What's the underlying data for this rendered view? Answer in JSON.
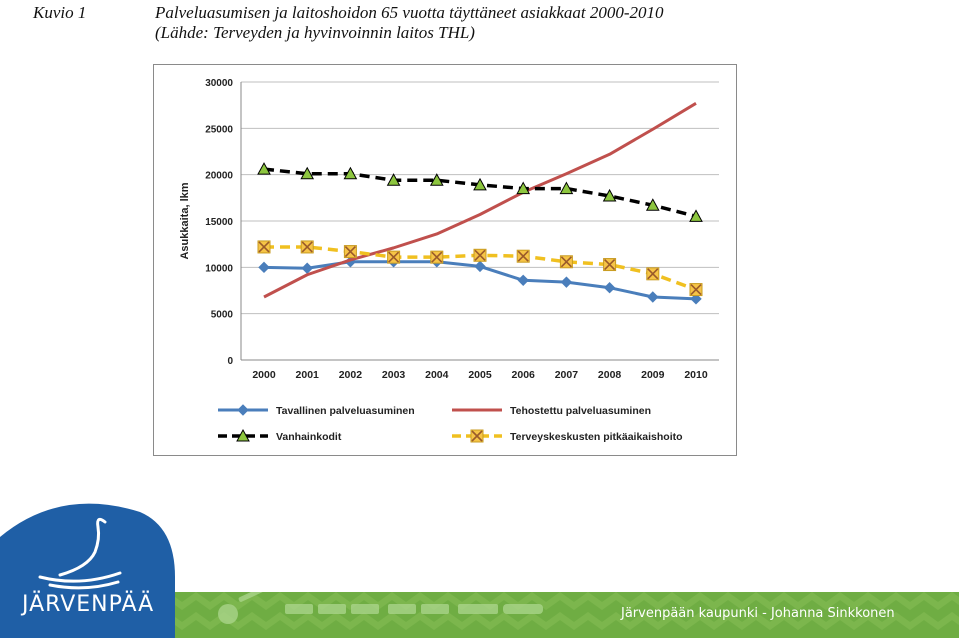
{
  "caption": {
    "label": "Kuvio 1",
    "title_line1": "Palveluasumisen ja laitoshoidon 65 vuotta täyttäneet asiakkaat 2000-2010",
    "title_line2": "(Lähde: Terveyden ja hyvinvoinnin laitos THL)"
  },
  "chart_data": {
    "type": "line",
    "ylabel": "Asukkaita, lkm",
    "ylim": [
      0,
      30000
    ],
    "yticks": [
      "0",
      "5000",
      "10000",
      "15000",
      "20000",
      "25000",
      "30000"
    ],
    "x": [
      "2000",
      "2001",
      "2002",
      "2003",
      "2004",
      "2005",
      "2006",
      "2007",
      "2008",
      "2009",
      "2010"
    ],
    "grid": true,
    "legend_placement": "bottom",
    "series": [
      {
        "name": "Tavallinen palveluasuminen",
        "color": "#4a7ebb",
        "marker": "diamond",
        "dash": false,
        "values": [
          10000,
          9900,
          10600,
          10600,
          10600,
          10100,
          8600,
          8400,
          7800,
          6800,
          6600
        ]
      },
      {
        "name": "Tehostettu palveluasuminen",
        "color": "#c0504d",
        "marker": "none",
        "dash": false,
        "values": [
          6800,
          9200,
          10800,
          12100,
          13600,
          15700,
          18100,
          20100,
          22200,
          24900,
          27700
        ]
      },
      {
        "name": "Vanhainkodit",
        "color": "#000000",
        "marker": "triangle",
        "dash": true,
        "values": [
          20600,
          20100,
          20100,
          19400,
          19400,
          18900,
          18500,
          18500,
          17700,
          16700,
          15500
        ]
      },
      {
        "name": "Terveyskeskusten pitkäaikaishoito",
        "color": "#f0c020",
        "marker": "x-square",
        "dash": true,
        "values": [
          12200,
          12200,
          11700,
          11100,
          11100,
          11300,
          11200,
          10600,
          10300,
          9300,
          7600
        ]
      }
    ]
  },
  "footer": {
    "text": "Järvenpään kaupunki - Johanna Sinkkonen",
    "logo_text": "JÄRVENPÄÄ"
  },
  "colors": {
    "footer_green": "#6aa84f",
    "logo_blue": "#1f5fa6"
  }
}
